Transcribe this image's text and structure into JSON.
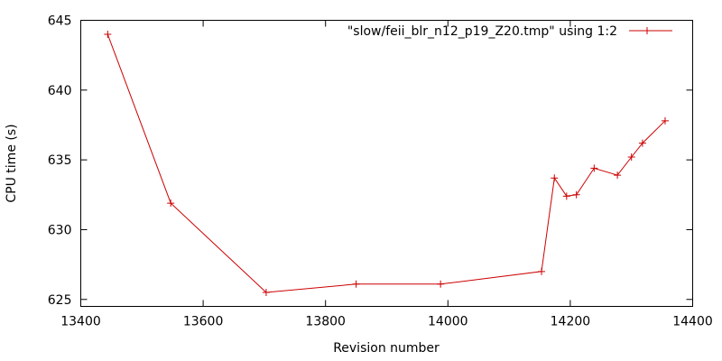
{
  "chart_data": {
    "type": "line",
    "title": "",
    "xlabel": "Revision number",
    "ylabel": "CPU time (s)",
    "xlim": [
      13400,
      14400
    ],
    "ylim": [
      624.5,
      645
    ],
    "x_ticks": [
      13400,
      13600,
      13800,
      14000,
      14200,
      14400
    ],
    "y_ticks": [
      625,
      630,
      635,
      640,
      645
    ],
    "grid": false,
    "legend_position": "top-right",
    "series": [
      {
        "name": "\"slow/feii_blr_n12_p19_Z20.tmp\" using 1:2",
        "color": "#cc0000",
        "marker": "plus",
        "x": [
          13444,
          13547,
          13703,
          13850,
          13988,
          14153,
          14174,
          14194,
          14210,
          14239,
          14277,
          14300,
          14318,
          14355
        ],
        "y": [
          644,
          631.9,
          625.5,
          626.1,
          626.1,
          627,
          633.7,
          632.4,
          632.5,
          634.4,
          633.9,
          635.2,
          636.2,
          637.8
        ]
      }
    ]
  }
}
